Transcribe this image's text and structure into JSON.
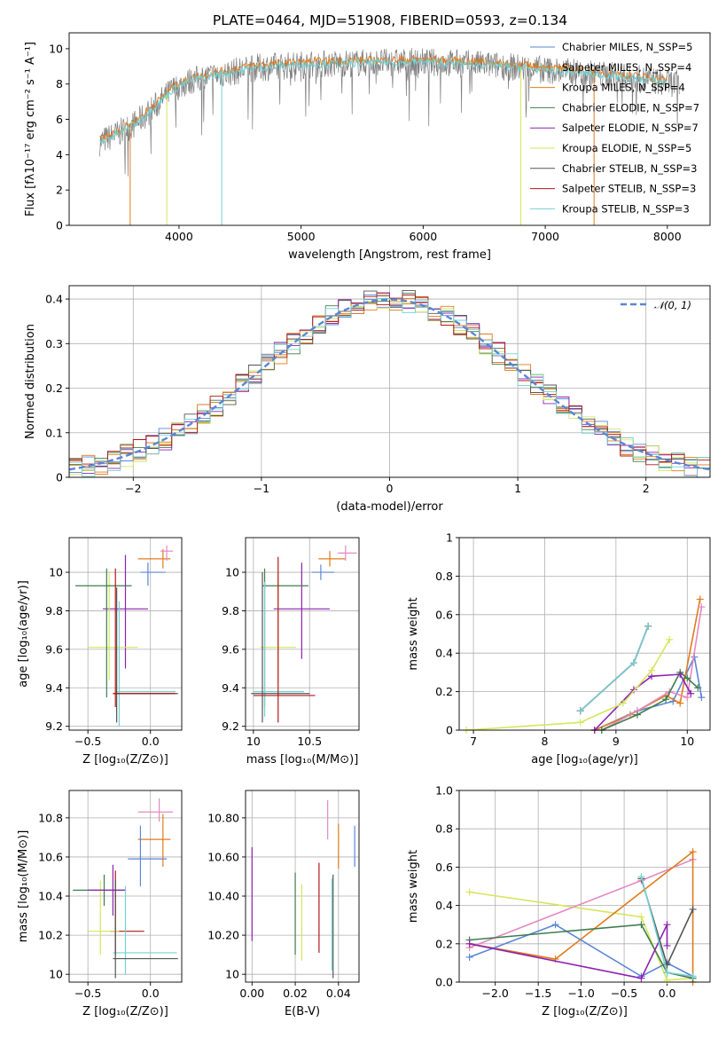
{
  "title": "PLATE=0464, MJD=51908, FIBERID=0593, z=0.134",
  "colors": {
    "Chabrier MILES": "#5b86d6",
    "Salpeter MILES": "#e07b1e",
    "Kroupa MILES": "#e07b1e",
    "Chabrier ELODIE": "#3f7d4e",
    "Salpeter ELODIE": "#8e22b0",
    "Kroupa ELODIE": "#d6e65a",
    "Chabrier STELIB": "#555555",
    "Salpeter STELIB": "#b01818",
    "Kroupa STELIB": "#74d0d4",
    "normal": "#5b86d6",
    "pink": "#e48ac0"
  },
  "chart_data": [
    {
      "id": "spectrum",
      "type": "line",
      "xlabel": "wavelength [Angstrom, rest frame]",
      "ylabel": "Flux [fλ10⁻¹⁷ erg cm⁻² s⁻¹ A⁻¹]",
      "xlim": [
        3100,
        8350
      ],
      "ylim": [
        0,
        10.9
      ],
      "xticks": [
        4000,
        5000,
        6000,
        7000,
        8000
      ],
      "yticks": [
        0,
        2,
        4,
        6,
        8,
        10
      ],
      "data_range": [
        3350,
        8100
      ],
      "continuum": [
        [
          3350,
          4.7
        ],
        [
          3500,
          5.2
        ],
        [
          3650,
          5.8
        ],
        [
          3800,
          6.7
        ],
        [
          3950,
          7.7
        ],
        [
          4100,
          8.2
        ],
        [
          4300,
          8.5
        ],
        [
          4600,
          8.9
        ],
        [
          5000,
          9.1
        ],
        [
          5500,
          9.2
        ],
        [
          6000,
          9.25
        ],
        [
          6500,
          9.1
        ],
        [
          7000,
          8.8
        ],
        [
          7500,
          8.5
        ],
        [
          8000,
          8.1
        ],
        [
          8100,
          8.0
        ]
      ],
      "legend": [
        "Chabrier MILES, N_SSP=5",
        "Salpeter MILES, N_SSP=4",
        "Kroupa MILES, N_SSP=4",
        "Chabrier ELODIE, N_SSP=7",
        "Salpeter ELODIE, N_SSP=7",
        "Kroupa ELODIE, N_SSP=5",
        "Chabrier STELIB, N_SSP=3",
        "Salpeter STELIB, N_SSP=3",
        "Kroupa STELIB, N_SSP=3"
      ],
      "legend_series": [
        "Chabrier MILES",
        "Salpeter MILES",
        "Kroupa MILES",
        "Chabrier ELODIE",
        "Salpeter ELODIE",
        "Kroupa ELODIE",
        "Chabrier STELIB",
        "Salpeter STELIB",
        "Kroupa STELIB"
      ]
    },
    {
      "id": "residuals",
      "type": "line",
      "xlabel": "(data-model)/error",
      "ylabel": "Normed distribution",
      "xlim": [
        -2.5,
        2.5
      ],
      "ylim": [
        0,
        0.43
      ],
      "xticks": [
        -2,
        -1,
        0,
        1,
        2
      ],
      "yticks": [
        0.0,
        0.1,
        0.2,
        0.3,
        0.4
      ],
      "legend": "𝒩(0, 1)",
      "bin_width": 0.1
    },
    {
      "id": "age_vs_Z",
      "type": "scatter",
      "xlabel": "Z [log₁₀(Z/Z⊙)]",
      "ylabel": "age  [log₁₀(age/yr)]",
      "xlim": [
        -0.65,
        0.25
      ],
      "ylim": [
        9.18,
        10.18
      ],
      "xticks": [
        -0.5,
        0.0
      ],
      "yticks": [
        9.2,
        9.4,
        9.6,
        9.8,
        10.0
      ],
      "points": [
        {
          "s": "Chabrier MILES",
          "x": -0.02,
          "xl": -0.08,
          "xh": 0.12,
          "y": 10.0,
          "yl": 9.93,
          "yh": 10.05
        },
        {
          "s": "Salpeter MILES",
          "x": 0.1,
          "xl": -0.1,
          "xh": 0.16,
          "y": 10.07,
          "yl": 10.02,
          "yh": 10.12
        },
        {
          "s": "pink",
          "x": 0.13,
          "xl": 0.08,
          "xh": 0.18,
          "y": 10.11,
          "yl": 10.06,
          "yh": 10.14
        },
        {
          "s": "Salpeter ELODIE",
          "x": -0.2,
          "xl": -0.38,
          "xh": -0.02,
          "y": 9.81,
          "yl": 9.5,
          "yh": 10.09
        },
        {
          "s": "Kroupa ELODIE",
          "x": -0.33,
          "xl": -0.5,
          "xh": -0.1,
          "y": 9.61,
          "yl": 9.44,
          "yh": 10.0
        },
        {
          "s": "Chabrier ELODIE",
          "x": -0.35,
          "xl": -0.6,
          "xh": -0.15,
          "y": 9.93,
          "yl": 9.35,
          "yh": 10.02
        },
        {
          "s": "Kroupa STELIB",
          "x": -0.25,
          "xl": -0.27,
          "xh": 0.2,
          "y": 9.38,
          "yl": 9.2,
          "yh": 9.85
        },
        {
          "s": "Chabrier STELIB",
          "x": -0.27,
          "xl": -0.3,
          "xh": 0.22,
          "y": 9.37,
          "yl": 9.22,
          "yh": 9.92
        },
        {
          "s": "Salpeter STELIB",
          "x": -0.28,
          "xl": -0.3,
          "xh": 0.2,
          "y": 9.37,
          "yl": 9.3,
          "yh": 10.02
        }
      ]
    },
    {
      "id": "age_vs_mass",
      "type": "scatter",
      "xlabel": "mass [log₁₀(M/M⊙)]",
      "ylabel": "",
      "xlim": [
        9.93,
        10.94
      ],
      "ylim": [
        9.18,
        10.18
      ],
      "xticks": [
        10.0,
        10.5
      ],
      "yticks": [
        9.2,
        9.4,
        9.6,
        9.8,
        10.0
      ],
      "points": [
        {
          "s": "Chabrier MILES",
          "x": 10.6,
          "xl": 10.52,
          "xh": 10.72,
          "y": 10.0,
          "yl": 9.96,
          "yh": 10.04
        },
        {
          "s": "Salpeter MILES",
          "x": 10.68,
          "xl": 10.58,
          "xh": 10.82,
          "y": 10.07,
          "yl": 10.03,
          "yh": 10.11
        },
        {
          "s": "pink",
          "x": 10.82,
          "xl": 10.75,
          "xh": 10.92,
          "y": 10.1,
          "yl": 10.06,
          "yh": 10.14
        },
        {
          "s": "Salpeter ELODIE",
          "x": 10.43,
          "xl": 10.18,
          "xh": 10.68,
          "y": 9.81,
          "yl": 9.55,
          "yh": 10.05
        },
        {
          "s": "Kroupa ELODIE",
          "x": 10.22,
          "xl": 10.06,
          "xh": 10.38,
          "y": 9.61,
          "yl": 9.42,
          "yh": 10.0
        },
        {
          "s": "Chabrier ELODIE",
          "x": 10.1,
          "xl": 10.08,
          "xh": 10.49,
          "y": 9.93,
          "yl": 9.3,
          "yh": 10.02
        },
        {
          "s": "Kroupa STELIB",
          "x": 10.1,
          "xl": 10.0,
          "xh": 10.45,
          "y": 9.38,
          "yl": 9.25,
          "yh": 9.95
        },
        {
          "s": "Chabrier STELIB",
          "x": 10.08,
          "xl": 9.98,
          "xh": 10.5,
          "y": 9.37,
          "yl": 9.22,
          "yh": 10.0
        },
        {
          "s": "Salpeter STELIB",
          "x": 10.22,
          "xl": 10.0,
          "xh": 10.55,
          "y": 9.36,
          "yl": 9.22,
          "yh": 10.08
        }
      ]
    },
    {
      "id": "weight_vs_age",
      "type": "line",
      "xlabel": "age  [log₁₀(age/yr)]",
      "ylabel": "mass weight",
      "xlim": [
        6.8,
        10.32
      ],
      "ylim": [
        0,
        1.0
      ],
      "xticks": [
        7,
        8,
        9,
        10
      ],
      "yticks": [
        0.0,
        0.2,
        0.4,
        0.6,
        0.8,
        1.0
      ],
      "series": [
        {
          "s": "Chabrier MILES",
          "pts": [
            [
              8.7,
              0.0
            ],
            [
              9.3,
              0.1
            ],
            [
              9.8,
              0.15
            ],
            [
              10.1,
              0.38
            ],
            [
              10.2,
              0.17
            ]
          ]
        },
        {
          "s": "Salpeter MILES",
          "pts": [
            [
              8.7,
              0.0
            ],
            [
              9.2,
              0.08
            ],
            [
              9.7,
              0.18
            ],
            [
              9.9,
              0.14
            ],
            [
              10.18,
              0.68
            ]
          ]
        },
        {
          "s": "pink",
          "pts": [
            [
              8.8,
              0.0
            ],
            [
              9.3,
              0.1
            ],
            [
              9.75,
              0.2
            ],
            [
              10.0,
              0.17
            ],
            [
              10.2,
              0.64
            ]
          ]
        },
        {
          "s": "Chabrier ELODIE",
          "pts": [
            [
              8.8,
              0.0
            ],
            [
              9.3,
              0.08
            ],
            [
              9.7,
              0.16
            ],
            [
              9.9,
              0.3
            ],
            [
              10.0,
              0.27
            ],
            [
              10.15,
              0.22
            ]
          ]
        },
        {
          "s": "Salpeter ELODIE",
          "pts": [
            [
              8.7,
              0.0
            ],
            [
              9.25,
              0.21
            ],
            [
              9.5,
              0.28
            ],
            [
              9.9,
              0.29
            ],
            [
              10.05,
              0.19
            ]
          ]
        },
        {
          "s": "Kroupa ELODIE",
          "pts": [
            [
              6.9,
              0.0
            ],
            [
              8.5,
              0.04
            ],
            [
              9.1,
              0.14
            ],
            [
              9.5,
              0.31
            ],
            [
              9.75,
              0.47
            ]
          ]
        },
        {
          "s": "Chabrier STELIB",
          "pts": [
            [
              8.5,
              0.1
            ],
            [
              9.25,
              0.35
            ],
            [
              9.45,
              0.54
            ]
          ]
        },
        {
          "s": "Salpeter STELIB",
          "pts": [
            [
              8.5,
              0.1
            ],
            [
              9.25,
              0.35
            ],
            [
              9.45,
              0.54
            ]
          ]
        },
        {
          "s": "Kroupa STELIB",
          "pts": [
            [
              8.5,
              0.1
            ],
            [
              9.25,
              0.35
            ],
            [
              9.45,
              0.54
            ]
          ]
        }
      ]
    },
    {
      "id": "mass_vs_Z",
      "type": "scatter",
      "xlabel": "Z [log₁₀(Z/Z⊙)]",
      "ylabel": "mass [log₁₀(M/M⊙)]",
      "xlim": [
        -0.65,
        0.25
      ],
      "ylim": [
        9.96,
        10.94
      ],
      "xticks": [
        -0.5,
        0.0
      ],
      "yticks": [
        10.0,
        10.2,
        10.4,
        10.6,
        10.8
      ],
      "points": [
        {
          "s": "pink",
          "x": 0.07,
          "xl": -0.1,
          "xh": 0.18,
          "y": 10.83,
          "yl": 10.78,
          "yh": 10.9
        },
        {
          "s": "Salpeter MILES",
          "x": 0.1,
          "xl": -0.1,
          "xh": 0.16,
          "y": 10.69,
          "yl": 10.55,
          "yh": 10.82
        },
        {
          "s": "Chabrier MILES",
          "x": -0.08,
          "xl": -0.18,
          "xh": 0.13,
          "y": 10.59,
          "yl": 10.45,
          "yh": 10.76
        },
        {
          "s": "Salpeter STELIB",
          "x": -0.28,
          "xl": -0.32,
          "xh": -0.05,
          "y": 10.22,
          "yl": 10.1,
          "yh": 10.53
        },
        {
          "s": "Kroupa ELODIE",
          "x": -0.4,
          "xl": -0.5,
          "xh": -0.25,
          "y": 10.22,
          "yl": 10.1,
          "yh": 10.48
        },
        {
          "s": "Chabrier ELODIE",
          "x": -0.37,
          "xl": -0.62,
          "xh": -0.2,
          "y": 10.43,
          "yl": 10.35,
          "yh": 10.51
        },
        {
          "s": "Salpeter ELODIE",
          "x": -0.3,
          "xl": -0.5,
          "xh": -0.2,
          "y": 10.43,
          "yl": 10.3,
          "yh": 10.56
        },
        {
          "s": "Kroupa STELIB",
          "x": -0.2,
          "xl": -0.3,
          "xh": 0.21,
          "y": 10.11,
          "yl": 10.0,
          "yh": 10.45
        },
        {
          "s": "Chabrier STELIB",
          "x": -0.28,
          "xl": -0.3,
          "xh": 0.22,
          "y": 10.08,
          "yl": 9.98,
          "yh": 10.48
        }
      ]
    },
    {
      "id": "mass_vs_EBV",
      "type": "scatter",
      "xlabel": "E(B-V)",
      "ylabel": "",
      "xlim": [
        -0.003,
        0.0495
      ],
      "ylim": [
        9.96,
        10.94
      ],
      "xticks": [
        0.0,
        0.02,
        0.04
      ],
      "yticks": [
        10.0,
        10.2,
        10.4,
        10.6,
        10.8
      ],
      "bars": [
        {
          "s": "Salpeter ELODIE",
          "x": 0.0,
          "yl": 10.17,
          "yh": 10.65
        },
        {
          "s": "Chabrier ELODIE",
          "x": 0.02,
          "yl": 10.1,
          "yh": 10.52
        },
        {
          "s": "Kroupa ELODIE",
          "x": 0.023,
          "yl": 10.07,
          "yh": 10.46
        },
        {
          "s": "Salpeter STELIB",
          "x": 0.031,
          "yl": 10.11,
          "yh": 10.57
        },
        {
          "s": "pink",
          "x": 0.035,
          "yl": 10.69,
          "yh": 10.89
        },
        {
          "s": "Chabrier STELIB",
          "x": 0.0375,
          "yl": 9.98,
          "yh": 10.51
        },
        {
          "s": "Kroupa STELIB",
          "x": 0.037,
          "yl": 10.02,
          "yh": 10.49
        },
        {
          "s": "Salpeter MILES",
          "x": 0.04,
          "yl": 10.54,
          "yh": 10.77
        },
        {
          "s": "Chabrier MILES",
          "x": 0.0475,
          "yl": 10.55,
          "yh": 10.76
        }
      ]
    },
    {
      "id": "weight_vs_Z",
      "type": "line",
      "xlabel": "Z [log₁₀(Z/Z⊙)]",
      "ylabel": "mass weight",
      "xlim": [
        -2.42,
        0.5
      ],
      "ylim": [
        0,
        1.0
      ],
      "xticks": [
        -2.0,
        -1.5,
        -1.0,
        -0.5,
        0.0
      ],
      "yticks": [
        0.0,
        0.2,
        0.4,
        0.6,
        0.8,
        1.0
      ],
      "series": [
        {
          "s": "Kroupa ELODIE",
          "pts": [
            [
              -2.3,
              0.47
            ],
            [
              -0.3,
              0.34
            ],
            [
              0.0,
              0.01
            ],
            [
              0.3,
              0.02
            ]
          ]
        },
        {
          "s": "pink",
          "pts": [
            [
              -2.3,
              0.18
            ],
            [
              -0.3,
              0.53
            ],
            [
              0.3,
              0.64
            ]
          ]
        },
        {
          "s": "Salpeter MILES",
          "pts": [
            [
              -2.3,
              0.2
            ],
            [
              -1.3,
              0.12
            ],
            [
              0.3,
              0.68
            ],
            [
              0.3,
              0.0
            ]
          ]
        },
        {
          "s": "Chabrier MILES",
          "pts": [
            [
              -2.3,
              0.13
            ],
            [
              -1.3,
              0.3
            ],
            [
              -0.3,
              0.03
            ],
            [
              0.0,
              0.1
            ],
            [
              0.3,
              0.03
            ]
          ]
        },
        {
          "s": "Chabrier ELODIE",
          "pts": [
            [
              -2.3,
              0.22
            ],
            [
              -0.3,
              0.3
            ],
            [
              0.0,
              0.05
            ],
            [
              0.3,
              0.02
            ]
          ]
        },
        {
          "s": "Salpeter ELODIE",
          "pts": [
            [
              -2.3,
              0.2
            ],
            [
              -0.3,
              0.02
            ],
            [
              0.0,
              0.3
            ],
            [
              0.0,
              0.19
            ]
          ]
        },
        {
          "s": "Chabrier STELIB",
          "pts": [
            [
              -0.3,
              0.54
            ],
            [
              0.0,
              0.09
            ],
            [
              0.3,
              0.38
            ]
          ]
        },
        {
          "s": "Kroupa STELIB",
          "pts": [
            [
              -0.3,
              0.55
            ],
            [
              0.0,
              0.05
            ],
            [
              0.3,
              0.03
            ]
          ]
        }
      ]
    }
  ]
}
